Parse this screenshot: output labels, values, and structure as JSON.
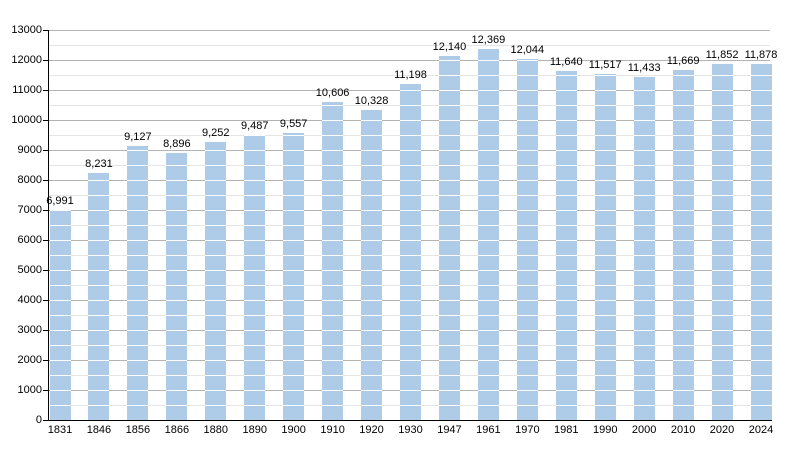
{
  "page": {
    "background": "#ffffff",
    "title": ""
  },
  "chart_data": {
    "type": "bar",
    "title": "",
    "xlabel": "",
    "ylabel": "",
    "categories": [
      "1831",
      "1846",
      "1856",
      "1866",
      "1880",
      "1890",
      "1900",
      "1910",
      "1920",
      "1930",
      "1947",
      "1961",
      "1970",
      "1981",
      "1990",
      "2000",
      "2010",
      "2020",
      "2024"
    ],
    "values": [
      6991,
      8231,
      9127,
      8896,
      9252,
      9487,
      9557,
      10606,
      10328,
      11198,
      12140,
      12369,
      12044,
      11640,
      11517,
      11433,
      11669,
      11852,
      11878
    ],
    "value_labels": [
      "6,991",
      "8,231",
      "9,127",
      "8,896",
      "9,252",
      "9,487",
      "9,557",
      "10,606",
      "10,328",
      "11,198",
      "12,140",
      "12,369",
      "12,044",
      "11,640",
      "11,517",
      "11,433",
      "11,669",
      "11,852",
      "11,878"
    ],
    "y_tick_labels": [
      "0",
      "1000",
      "2000",
      "3000",
      "4000",
      "5000",
      "6000",
      "7000",
      "8000",
      "9000",
      "10000",
      "11000",
      "12000",
      "13000"
    ],
    "ylim": [
      0,
      13000
    ],
    "y_major_step": 1000,
    "y_minor_step": 500,
    "grid": "horizontal; minor every 500, major every 1000; lines appear white where they cross bars",
    "legend": "none",
    "colors": {
      "bar_fill": "#aecbe7",
      "bar_stripe": "#ffffff",
      "grid_major": "#b3b3b3",
      "grid_minor": "#e5e5e5",
      "axis": "#000000",
      "text": "#000000"
    }
  }
}
